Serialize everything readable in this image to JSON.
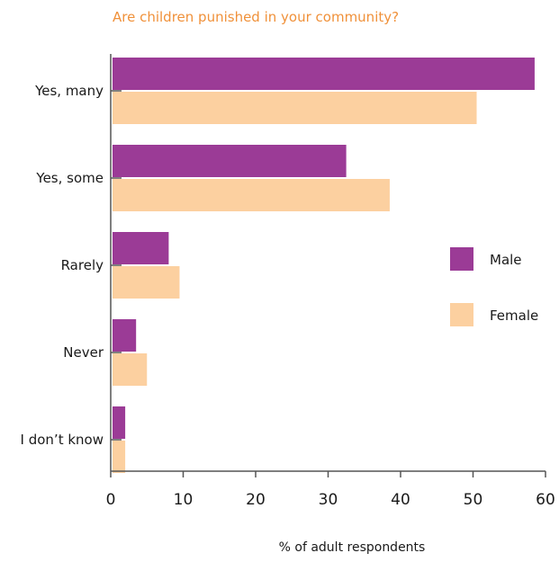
{
  "chart_data": {
    "type": "bar",
    "orientation": "horizontal",
    "title": "Are children punished in your community?",
    "xlabel": "% of adult respondents",
    "ylabel": "",
    "xlim": [
      0,
      60
    ],
    "xticks": [
      0,
      10,
      20,
      30,
      40,
      50,
      60
    ],
    "categories": [
      "Yes, many",
      "Yes, some",
      "Rarely",
      "Never",
      "I don’t know"
    ],
    "series": [
      {
        "name": "Male",
        "color": "#9b3b96",
        "values": [
          58.5,
          32.5,
          8,
          3.5,
          2
        ]
      },
      {
        "name": "Female",
        "color": "#fcd0a0",
        "values": [
          50.5,
          38.5,
          9.5,
          5,
          2
        ]
      }
    ],
    "legend_position": "right",
    "grid": false
  }
}
